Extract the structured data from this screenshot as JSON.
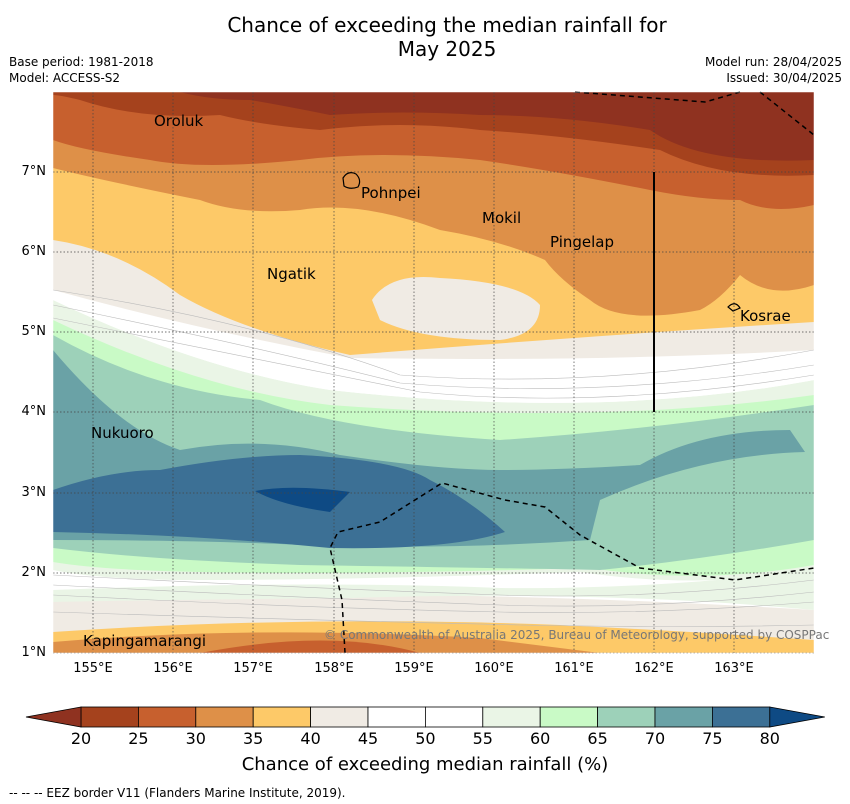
{
  "header": {
    "title_line1": "Chance of exceeding the median rainfall for",
    "title_line2": "May 2025",
    "base_period": "Base period: 1981-2018",
    "model": "Model: ACCESS-S2",
    "model_run": "Model run: 28/04/2025",
    "issued": "Issued: 30/04/2025"
  },
  "map": {
    "lon_labels": [
      "155°E",
      "156°E",
      "157°E",
      "158°E",
      "159°E",
      "160°E",
      "161°E",
      "162°E",
      "163°E"
    ],
    "lat_labels": [
      "7°N",
      "6°N",
      "5°N",
      "4°N",
      "3°N",
      "2°N",
      "1°N"
    ],
    "places": [
      "Oroluk",
      "Pohnpei",
      "Mokil",
      "Pingelap",
      "Ngatik",
      "Kosrae",
      "Nukuoro",
      "Kapingamarangi"
    ],
    "copyright": "© Commonwealth of Australia 2025, Bureau of Meteorology, supported by COSPPac"
  },
  "colorbar": {
    "ticks": [
      "20",
      "25",
      "30",
      "35",
      "40",
      "45",
      "50",
      "55",
      "60",
      "65",
      "70",
      "75",
      "80"
    ],
    "colors": [
      "#a5421d",
      "#c7602e",
      "#de9048",
      "#fdc968",
      "#f0ebe4",
      "#ffffff",
      "#ffffff",
      "#eaf5e6",
      "#c9fac6",
      "#9dd1b9",
      "#6aa2a6",
      "#3c7095"
    ],
    "under_color": "#8f3220",
    "over_color": "#0e4a84",
    "label": "Chance of exceeding median rainfall (%)"
  },
  "footnote": "--  --  -- EEZ border V11 (Flanders Marine Institute, 2019)."
}
